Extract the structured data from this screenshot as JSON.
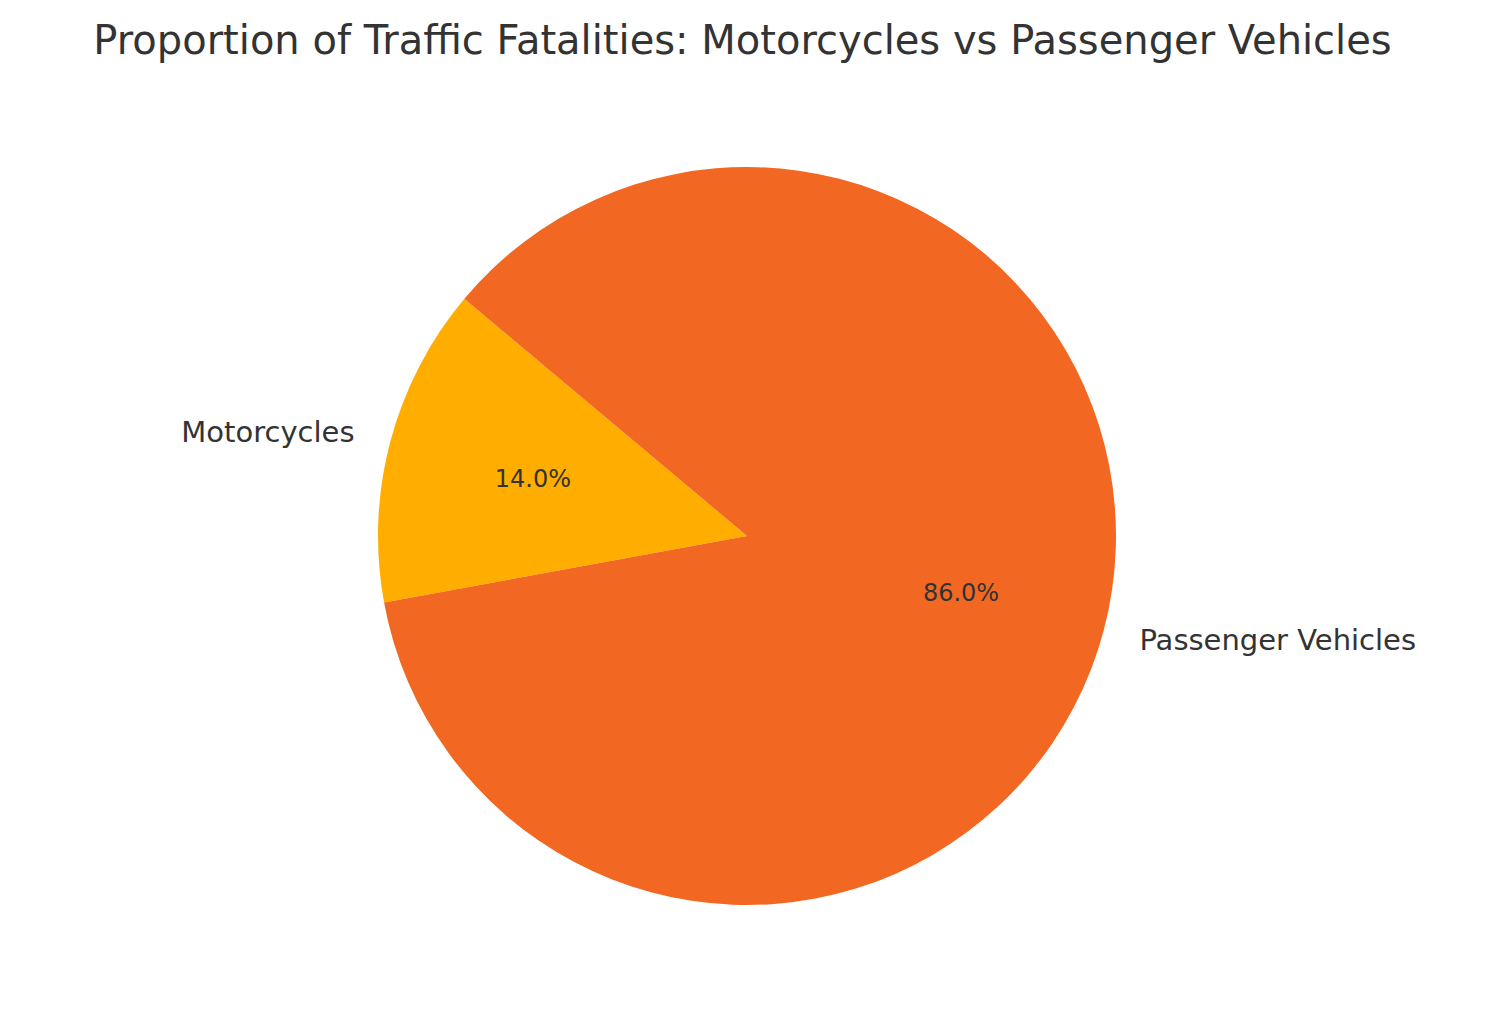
{
  "chart_data": {
    "type": "pie",
    "title": "Proportion of Traffic Fatalities: Motorcycles vs Passenger Vehicles",
    "categories": [
      "Motorcycles",
      "Passenger Vehicles"
    ],
    "values": [
      14,
      86
    ],
    "value_labels": [
      "14.0%",
      "86.0%"
    ],
    "colors": [
      "#ffae00",
      "#f26822"
    ],
    "data_labels": true
  }
}
